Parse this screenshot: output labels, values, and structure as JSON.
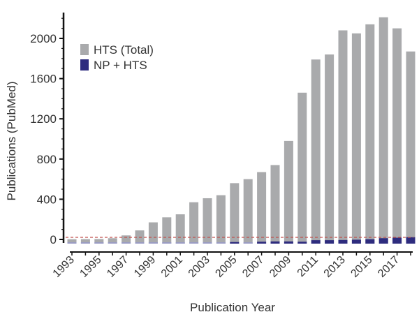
{
  "chart_data": {
    "type": "bar",
    "title": "",
    "xlabel": "Publication Year",
    "ylabel": "Publications (PubMed)",
    "categories": [
      1993,
      1994,
      1995,
      1996,
      1997,
      1998,
      1999,
      2000,
      2001,
      2002,
      2003,
      2004,
      2005,
      2006,
      2007,
      2008,
      2009,
      2010,
      2011,
      2012,
      2013,
      2014,
      2015,
      2016,
      2017,
      2018
    ],
    "x_tick_labels": [
      "1993",
      "1995",
      "1997",
      "1999",
      "2001",
      "2003",
      "2005",
      "2007",
      "2009",
      "2011",
      "2013",
      "2015",
      "2017"
    ],
    "y_ticks": [
      0,
      400,
      800,
      1200,
      1600,
      2000
    ],
    "ylim": [
      0,
      2250
    ],
    "grid": false,
    "legend_position": "top-left",
    "reference_line": {
      "value": 25,
      "style": "dashed",
      "color": "#c0504d"
    },
    "series": [
      {
        "name": "HTS (Total)",
        "color": "#a9aaac",
        "values": [
          2,
          3,
          4,
          12,
          40,
          90,
          170,
          220,
          250,
          370,
          410,
          440,
          560,
          600,
          670,
          740,
          980,
          1460,
          1790,
          1840,
          2080,
          2050,
          2140,
          2210,
          2100,
          1870
        ]
      },
      {
        "name": "NP + HTS",
        "color": "#2e2c7e",
        "values": [
          0,
          0,
          0,
          0,
          0,
          0,
          0,
          0,
          0,
          0,
          0,
          0,
          2,
          0,
          5,
          8,
          8,
          5,
          20,
          20,
          22,
          25,
          30,
          40,
          45,
          50
        ]
      }
    ]
  }
}
